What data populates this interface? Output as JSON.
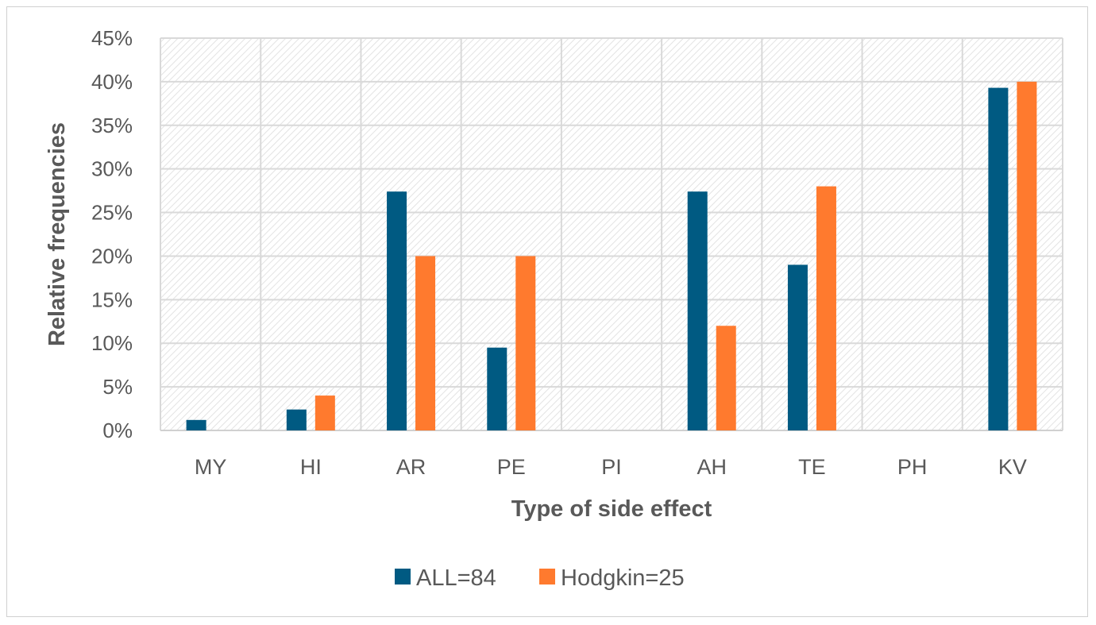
{
  "chart_data": {
    "type": "bar",
    "categories": [
      "MY",
      "HI",
      "AR",
      "PE",
      "PI",
      "AH",
      "TE",
      "PH",
      "KV"
    ],
    "series": [
      {
        "name": "ALL=84",
        "color": "#005a82",
        "values": [
          1.2,
          2.4,
          27.4,
          9.5,
          0,
          27.4,
          19.0,
          0,
          39.3
        ]
      },
      {
        "name": "Hodgkin=25",
        "color": "#ff7a2e",
        "values": [
          0,
          4.0,
          20.0,
          20.0,
          0,
          12.0,
          28.0,
          0,
          40.0
        ]
      }
    ],
    "xlabel": "Type of side effect",
    "ylabel": "Relative frequencies",
    "ylim": [
      0,
      45
    ],
    "yticks": [
      0,
      5,
      10,
      15,
      20,
      25,
      30,
      35,
      40,
      45
    ],
    "ytick_labels": [
      "0%",
      "5%",
      "10%",
      "15%",
      "20%",
      "25%",
      "30%",
      "35%",
      "40%",
      "45%"
    ],
    "grid": true,
    "legend_position": "bottom"
  }
}
